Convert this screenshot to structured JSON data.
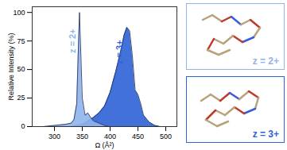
{
  "chart_data": {
    "type": "area",
    "xlabel": "Ω (Å²)",
    "ylabel": "Relative Intensity (%)",
    "xlim": [
      260,
      520
    ],
    "xticks": [
      300,
      350,
      400,
      450,
      500
    ],
    "ylim": [
      0,
      105
    ],
    "yticks": [
      0,
      25,
      50,
      75,
      100
    ],
    "series": [
      {
        "name": "z = 3+",
        "color": "#2f62d6",
        "x": [
          330,
          350,
          370,
          380,
          390,
          400,
          410,
          420,
          425,
          430,
          435,
          440,
          445,
          450,
          455,
          460,
          470,
          480,
          490
        ],
        "values": [
          0,
          2,
          8,
          12,
          18,
          30,
          48,
          68,
          80,
          87,
          84,
          62,
          32,
          28,
          20,
          10,
          4,
          1,
          0
        ]
      },
      {
        "name": "z = 2+",
        "color": "#8fb4ec",
        "x": [
          280,
          300,
          320,
          330,
          335,
          340,
          343,
          345,
          347,
          350,
          355,
          360,
          365,
          370,
          380,
          390,
          400
        ],
        "values": [
          0,
          1,
          2,
          3,
          6,
          20,
          70,
          100,
          70,
          25,
          10,
          12,
          8,
          5,
          3,
          1,
          0
        ]
      }
    ]
  }
}
